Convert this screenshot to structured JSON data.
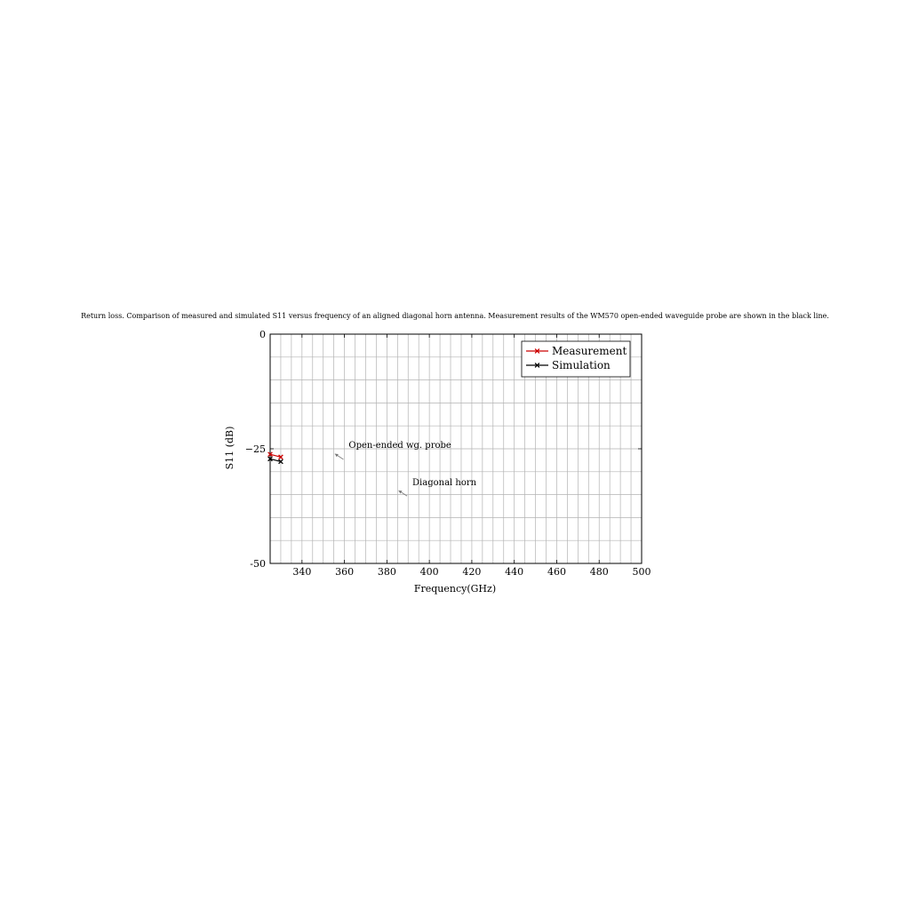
{
  "chart_data": {
    "type": "line",
    "title": "Return loss. Comparison of measured and simulated S11 versus frequency of an aligned diagonal horn antenna. Measurement results of the WM570 open-ended waveguide probe are shown in the black line.",
    "xlabel": "Frequency(GHz)",
    "ylabel": "S11 (dB)",
    "xlim": [
      325,
      500
    ],
    "ylim": [
      -50,
      0
    ],
    "x_ticks": [
      340,
      360,
      380,
      400,
      420,
      440,
      460,
      480,
      500
    ],
    "x_tick_labels": [
      "340",
      "360",
      "380",
      "400",
      "420",
      "440",
      "460",
      "480",
      "500"
    ],
    "y_ticks": [
      0,
      -25,
      -50
    ],
    "y_tick_labels": [
      "0",
      "−25",
      "-50"
    ],
    "x_minor_step": 5,
    "y_minor_step": 5,
    "grid": true,
    "legend": "top-right",
    "series": [
      {
        "name": "Measurement",
        "color": "#cc0000",
        "marker": "x",
        "x": [
          325,
          330
        ],
        "y": [
          -26.2,
          -26.8
        ]
      },
      {
        "name": "Simulation",
        "color": "#000000",
        "marker": "x",
        "x": [
          325,
          330
        ],
        "y": [
          -27.2,
          -27.8
        ]
      }
    ],
    "annotations": [
      {
        "text": "Open-ended wg. probe",
        "arrow_from": [
          359.5,
          -27.3
        ],
        "arrow_to": [
          355.5,
          -26.1
        ],
        "text_at": [
          362,
          -24.8
        ]
      },
      {
        "text": "Diagonal horn",
        "arrow_from": [
          389.5,
          -35.3
        ],
        "arrow_to": [
          385.5,
          -34.1
        ],
        "text_at": [
          392,
          -32.9
        ]
      }
    ]
  }
}
